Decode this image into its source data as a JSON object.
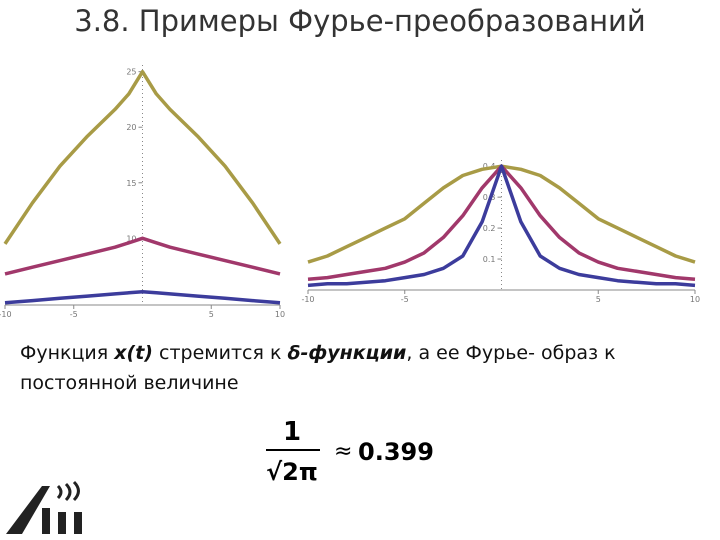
{
  "slide": {
    "title": "3.8. Примеры Фурье-преобразований",
    "caption": {
      "part1": "Функция ",
      "part2": "x(t)",
      "part3": " стремится к ",
      "part4": "δ-функции",
      "part5": ", а ее Фурье- образ к постоянной величине"
    },
    "formula": {
      "numerator": "1",
      "denominator": "√2π",
      "relation": "≈",
      "value": "0.399"
    }
  },
  "chart_data": [
    {
      "type": "line",
      "x": [
        -10,
        -8,
        -6,
        -4,
        -2,
        -1,
        0,
        1,
        2,
        4,
        6,
        8,
        10
      ],
      "series": [
        {
          "color": "#a89b46",
          "values": [
            9.5,
            13.2,
            16.5,
            19.2,
            21.6,
            23,
            25,
            23,
            21.6,
            19.2,
            16.5,
            13.2,
            9.5
          ]
        },
        {
          "color": "#a1386b",
          "values": [
            6.8,
            7.4,
            8,
            8.6,
            9.2,
            9.6,
            10,
            9.6,
            9.2,
            8.6,
            8,
            7.4,
            6.8
          ]
        },
        {
          "color": "#3c3c9c",
          "values": [
            4.2,
            4.4,
            4.6,
            4.8,
            5.0,
            5.1,
            5.2,
            5.1,
            5.0,
            4.8,
            4.6,
            4.4,
            4.2
          ]
        }
      ],
      "xlim": [
        -10,
        10
      ],
      "ylim": [
        4.0,
        25.6
      ],
      "xticks": [
        -10,
        -5,
        5,
        10
      ],
      "yticks": [
        10,
        15,
        20,
        25
      ]
    },
    {
      "type": "line",
      "x": [
        -10,
        -9,
        -8,
        -7,
        -6,
        -5,
        -4,
        -3,
        -2,
        -1,
        0,
        1,
        2,
        3,
        4,
        5,
        6,
        7,
        8,
        9,
        10
      ],
      "series": [
        {
          "color": "#a89b46",
          "values": [
            0.09,
            0.11,
            0.14,
            0.17,
            0.2,
            0.23,
            0.28,
            0.33,
            0.37,
            0.39,
            0.4,
            0.39,
            0.37,
            0.33,
            0.28,
            0.23,
            0.2,
            0.17,
            0.14,
            0.11,
            0.09
          ]
        },
        {
          "color": "#a1386b",
          "values": [
            0.035,
            0.04,
            0.05,
            0.06,
            0.07,
            0.09,
            0.12,
            0.17,
            0.24,
            0.33,
            0.4,
            0.33,
            0.24,
            0.17,
            0.12,
            0.09,
            0.07,
            0.06,
            0.05,
            0.04,
            0.035
          ]
        },
        {
          "color": "#3c3c9c",
          "values": [
            0.015,
            0.02,
            0.02,
            0.025,
            0.03,
            0.04,
            0.05,
            0.07,
            0.11,
            0.22,
            0.4,
            0.22,
            0.11,
            0.07,
            0.05,
            0.04,
            0.03,
            0.025,
            0.02,
            0.02,
            0.015
          ]
        }
      ],
      "xlim": [
        -10,
        10
      ],
      "ylim": [
        0,
        0.42
      ],
      "xticks": [
        -10,
        -5,
        5,
        10
      ],
      "yticks": [
        0.1,
        0.2,
        0.3,
        0.4
      ]
    }
  ]
}
